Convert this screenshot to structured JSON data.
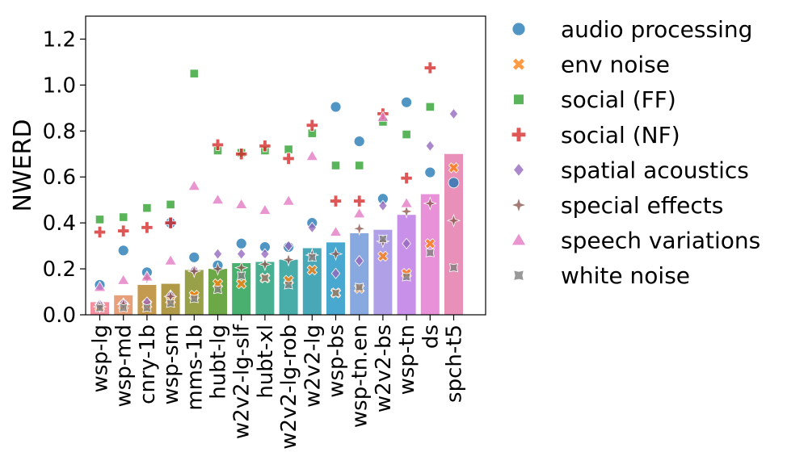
{
  "chart_data": {
    "type": "bar+scatter",
    "title": "",
    "xlabel": "",
    "ylabel": "NWERD",
    "ylim": [
      0,
      1.3
    ],
    "yticks": [
      "0.0",
      "0.2",
      "0.4",
      "0.6",
      "0.8",
      "1.0",
      "1.2"
    ],
    "ytick_values": [
      0,
      0.2,
      0.4,
      0.6,
      0.8,
      1.0,
      1.2
    ],
    "grid": false,
    "legend_position": "outside-right",
    "categories": [
      "wsp-lg",
      "wsp-md",
      "cnry-1b",
      "wsp-sm",
      "mms-1b",
      "hubt-lg",
      "w2v2-lg-slf",
      "hubt-xl",
      "w2v2-lg-rob",
      "w2v2-lg",
      "wsp-bs",
      "wsp-tn.en",
      "w2v2-bs",
      "wsp-tn",
      "ds",
      "spch-t5"
    ],
    "bar_values": [
      0.055,
      0.085,
      0.13,
      0.135,
      0.195,
      0.2,
      0.225,
      0.23,
      0.24,
      0.29,
      0.315,
      0.355,
      0.37,
      0.435,
      0.525,
      0.7
    ],
    "bar_colors": [
      "#f48fa0",
      "#e8a07a",
      "#c49a50",
      "#b09a48",
      "#98a048",
      "#6ca848",
      "#4ab070",
      "#48b090",
      "#48aca8",
      "#48a8b8",
      "#48a8d0",
      "#88a8e0",
      "#b0a0e8",
      "#c890e8",
      "#e890d8",
      "#e890b8"
    ],
    "series": [
      {
        "name": "audio processing",
        "marker": "circle",
        "color": "#1f77b4",
        "values": [
          0.13,
          0.28,
          0.185,
          0.4,
          0.25,
          0.215,
          0.31,
          0.295,
          0.295,
          0.4,
          0.905,
          0.755,
          0.505,
          0.925,
          0.62,
          0.575
        ]
      },
      {
        "name": "env noise",
        "marker": "x",
        "color": "#ff7f0e",
        "values": [
          0.035,
          0.04,
          0.045,
          0.065,
          0.085,
          0.135,
          0.135,
          0.16,
          0.15,
          0.195,
          0.095,
          0.115,
          0.255,
          0.18,
          0.31,
          0.64
        ]
      },
      {
        "name": "social (FF)",
        "marker": "square",
        "color": "#2ca02c",
        "values": [
          0.415,
          0.425,
          0.465,
          0.48,
          1.05,
          0.715,
          0.705,
          0.715,
          0.72,
          0.79,
          0.65,
          0.65,
          0.84,
          0.785,
          0.905,
          null
        ]
      },
      {
        "name": "social (NF)",
        "marker": "plus",
        "color": "#d62728",
        "values": [
          0.36,
          0.365,
          0.38,
          0.4,
          null,
          0.74,
          0.7,
          0.735,
          0.68,
          0.825,
          0.495,
          0.495,
          0.875,
          0.595,
          1.075,
          null
        ]
      },
      {
        "name": "spatial acoustics",
        "marker": "diamond",
        "color": "#9467bd",
        "values": [
          0.045,
          0.05,
          0.055,
          0.085,
          0.195,
          0.265,
          0.265,
          0.265,
          0.3,
          0.38,
          0.18,
          0.235,
          0.475,
          0.31,
          0.735,
          0.875
        ]
      },
      {
        "name": "special effects",
        "marker": "star",
        "color": "#8c564b",
        "values": [
          0.035,
          0.045,
          0.16,
          0.08,
          0.19,
          0.2,
          0.205,
          0.22,
          0.24,
          0.26,
          0.265,
          0.375,
          0.32,
          0.45,
          0.485,
          0.41
        ]
      },
      {
        "name": "speech variations",
        "marker": "triangle",
        "color": "#e377c2",
        "values": [
          0.12,
          0.15,
          0.165,
          0.235,
          0.56,
          0.5,
          0.48,
          0.455,
          0.495,
          0.69,
          0.36,
          0.44,
          0.86,
          0.485,
          null,
          null
        ]
      },
      {
        "name": "white noise",
        "marker": "wstar",
        "color": "#7f7f7f",
        "values": [
          0.03,
          0.03,
          0.03,
          0.05,
          0.07,
          0.11,
          0.17,
          0.16,
          0.13,
          0.25,
          0.095,
          0.12,
          0.33,
          0.165,
          0.27,
          0.205
        ]
      }
    ]
  }
}
